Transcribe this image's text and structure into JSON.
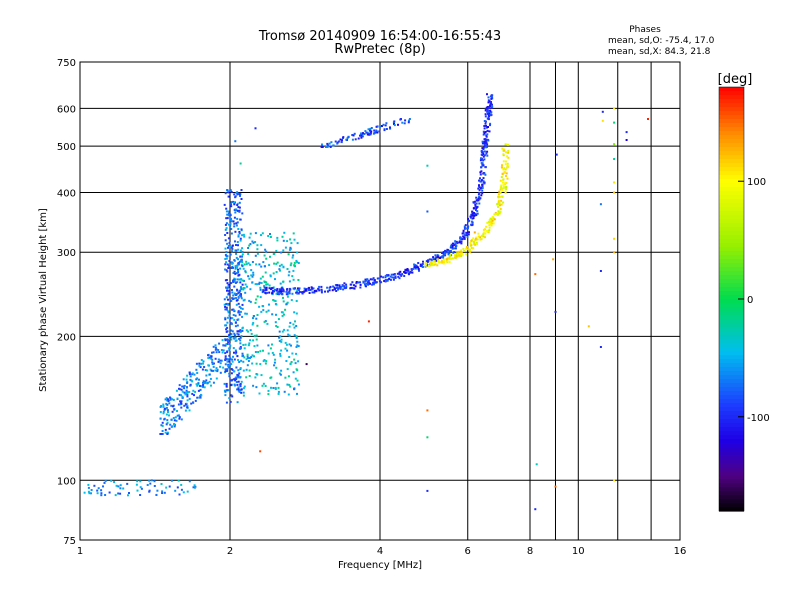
{
  "chart_data": {
    "type": "scatter",
    "title": "Tromsø 20140909 16:54:00-16:55:43",
    "subtitle": "RwPretec (8p)",
    "xlabel": "Frequency [MHz]",
    "ylabel": "Stationary phase Virtual Height [km]",
    "x_scale": "log",
    "y_scale": "log",
    "xlim": [
      1,
      16
    ],
    "ylim": [
      75,
      750
    ],
    "x_ticks": [
      1,
      2,
      4,
      6,
      8,
      10,
      16
    ],
    "y_ticks": [
      75,
      100,
      200,
      300,
      400,
      500,
      600,
      750
    ],
    "grid": true,
    "phases_box": {
      "title": "Phases",
      "line_o": "mean, sd,O: -75.4, 17.0",
      "line_x": "mean, sd,X: 84.3, 21.8"
    },
    "colorbar": {
      "label": "[deg]",
      "ticks": [
        100,
        0,
        -100
      ],
      "range": [
        -180,
        180
      ],
      "colormap": "black-purple-blue-cyan-green-yellow-red"
    },
    "colors": {
      "grid": "#000000",
      "low_phase": "#1a22d8",
      "mid_phase": "#22b8e0",
      "high_phase": "#e6e600"
    },
    "point_groups": [
      {
        "x_range": [
          1.0,
          1.72
        ],
        "y_range": [
          93,
          100
        ],
        "n": 70,
        "phase": -60,
        "note": "low echo trace"
      },
      {
        "x_range": [
          1.45,
          2.0
        ],
        "y_range": [
          125,
          200
        ],
        "n": 260,
        "phase": -65,
        "note": "rising cloud"
      },
      {
        "x_range": [
          1.95,
          2.12
        ],
        "y_range": [
          145,
          405
        ],
        "n": 420,
        "phase": -75,
        "note": "dense column"
      },
      {
        "x_range": [
          2.1,
          2.75
        ],
        "y_range": [
          150,
          330
        ],
        "n": 360,
        "phase": -40,
        "note": "spread block"
      },
      {
        "x_range": [
          3.05,
          4.6
        ],
        "y_range": [
          498,
          570
        ],
        "n": 90,
        "phase": -90,
        "note": "upper trace"
      }
    ],
    "o_trace": [
      {
        "x": 2.3,
        "y": 250
      },
      {
        "x": 2.6,
        "y": 248
      },
      {
        "x": 3.0,
        "y": 250
      },
      {
        "x": 3.5,
        "y": 255
      },
      {
        "x": 4.0,
        "y": 262
      },
      {
        "x": 4.5,
        "y": 272
      },
      {
        "x": 5.0,
        "y": 285
      },
      {
        "x": 5.5,
        "y": 300
      },
      {
        "x": 5.9,
        "y": 325
      },
      {
        "x": 6.2,
        "y": 365
      },
      {
        "x": 6.4,
        "y": 420
      },
      {
        "x": 6.5,
        "y": 500
      },
      {
        "x": 6.6,
        "y": 580
      },
      {
        "x": 6.65,
        "y": 640
      }
    ],
    "x_trace": [
      {
        "x": 5.0,
        "y": 282
      },
      {
        "x": 5.5,
        "y": 290
      },
      {
        "x": 6.0,
        "y": 305
      },
      {
        "x": 6.5,
        "y": 330
      },
      {
        "x": 6.9,
        "y": 365
      },
      {
        "x": 7.1,
        "y": 420
      },
      {
        "x": 7.15,
        "y": 500
      }
    ],
    "scattered_points": [
      {
        "x": 2.05,
        "y": 512,
        "phase": -70
      },
      {
        "x": 2.1,
        "y": 460,
        "phase": -20
      },
      {
        "x": 2.25,
        "y": 545,
        "phase": -100
      },
      {
        "x": 2.3,
        "y": 115,
        "phase": 160
      },
      {
        "x": 2.85,
        "y": 175,
        "phase": -160
      },
      {
        "x": 3.8,
        "y": 215,
        "phase": 170
      },
      {
        "x": 4.98,
        "y": 455,
        "phase": -30
      },
      {
        "x": 4.98,
        "y": 365,
        "phase": -80
      },
      {
        "x": 4.98,
        "y": 140,
        "phase": 150
      },
      {
        "x": 4.98,
        "y": 123,
        "phase": -10
      },
      {
        "x": 4.98,
        "y": 95,
        "phase": -100
      },
      {
        "x": 6.2,
        "y": 330,
        "phase": 130
      },
      {
        "x": 8.2,
        "y": 270,
        "phase": 150
      },
      {
        "x": 8.25,
        "y": 108,
        "phase": -30
      },
      {
        "x": 8.2,
        "y": 87,
        "phase": -100
      },
      {
        "x": 8.9,
        "y": 290,
        "phase": 130
      },
      {
        "x": 9.0,
        "y": 225,
        "phase": -100
      },
      {
        "x": 9.05,
        "y": 480,
        "phase": -100
      },
      {
        "x": 9.0,
        "y": 97,
        "phase": 150
      },
      {
        "x": 10.5,
        "y": 210,
        "phase": 120
      },
      {
        "x": 11.2,
        "y": 590,
        "phase": -100
      },
      {
        "x": 11.2,
        "y": 565,
        "phase": 110
      },
      {
        "x": 11.1,
        "y": 378,
        "phase": -70
      },
      {
        "x": 11.1,
        "y": 274,
        "phase": -100
      },
      {
        "x": 11.1,
        "y": 190,
        "phase": -100
      },
      {
        "x": 11.8,
        "y": 600,
        "phase": 110
      },
      {
        "x": 11.8,
        "y": 560,
        "phase": -10
      },
      {
        "x": 11.8,
        "y": 505,
        "phase": 40
      },
      {
        "x": 11.8,
        "y": 470,
        "phase": -20
      },
      {
        "x": 11.8,
        "y": 420,
        "phase": 110
      },
      {
        "x": 11.8,
        "y": 400,
        "phase": 120
      },
      {
        "x": 11.8,
        "y": 320,
        "phase": 115
      },
      {
        "x": 11.8,
        "y": 300,
        "phase": 130
      },
      {
        "x": 11.8,
        "y": 100,
        "phase": 110
      },
      {
        "x": 12.5,
        "y": 535,
        "phase": -100
      },
      {
        "x": 12.5,
        "y": 515,
        "phase": -120
      },
      {
        "x": 13.8,
        "y": 570,
        "phase": 170
      }
    ]
  }
}
